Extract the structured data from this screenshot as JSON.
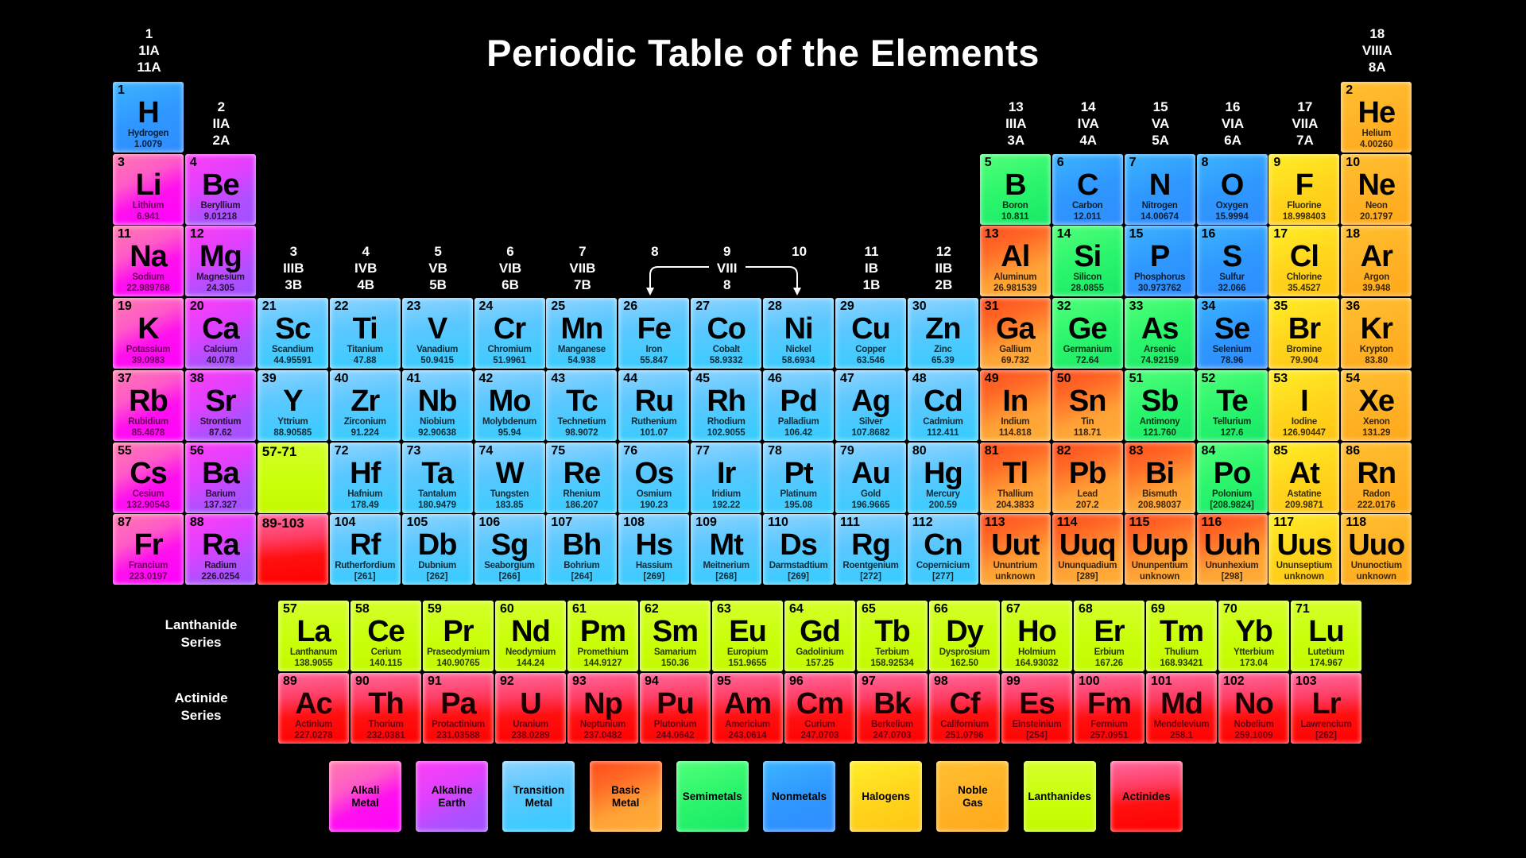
{
  "title": "Periodic Table of the Elements",
  "group_headers": [
    {
      "group": 1,
      "lines": [
        "1",
        "1IA",
        "11A"
      ]
    },
    {
      "group": 2,
      "lines": [
        "2",
        "IIA",
        "2A"
      ]
    },
    {
      "group": 3,
      "lines": [
        "3",
        "IIIB",
        "3B"
      ]
    },
    {
      "group": 4,
      "lines": [
        "4",
        "IVB",
        "4B"
      ]
    },
    {
      "group": 5,
      "lines": [
        "5",
        "VB",
        "5B"
      ]
    },
    {
      "group": 6,
      "lines": [
        "6",
        "VIB",
        "6B"
      ]
    },
    {
      "group": 7,
      "lines": [
        "7",
        "VIIB",
        "7B"
      ]
    },
    {
      "group": 8,
      "lines": [
        "8"
      ]
    },
    {
      "group": 9,
      "lines": [
        "9",
        "VIII",
        "8"
      ]
    },
    {
      "group": 10,
      "lines": [
        "10"
      ]
    },
    {
      "group": 11,
      "lines": [
        "11",
        "IB",
        "1B"
      ]
    },
    {
      "group": 12,
      "lines": [
        "12",
        "IIB",
        "2B"
      ]
    },
    {
      "group": 13,
      "lines": [
        "13",
        "IIIA",
        "3A"
      ]
    },
    {
      "group": 14,
      "lines": [
        "14",
        "IVA",
        "4A"
      ]
    },
    {
      "group": 15,
      "lines": [
        "15",
        "VA",
        "5A"
      ]
    },
    {
      "group": 16,
      "lines": [
        "16",
        "VIA",
        "6A"
      ]
    },
    {
      "group": 17,
      "lines": [
        "17",
        "VIIA",
        "7A"
      ]
    },
    {
      "group": 18,
      "lines": [
        "18",
        "VIIIA",
        "8A"
      ]
    }
  ],
  "category_colors": {
    "alkali": "#ff00ff",
    "alkaline": "#a050ff",
    "transition": "#33ccff",
    "basic": "#ff8c2a",
    "semimetal": "#20f06a",
    "nonmetal": "#2f98ff",
    "halogen": "#ffd61c",
    "noble": "#ffb024",
    "lanthanide": "#c8ff08",
    "actinide": "#ff0000"
  },
  "placeholders": [
    {
      "label": "57-71",
      "category": "lanthanide",
      "period": 6
    },
    {
      "label": "89-103",
      "category": "actinide",
      "period": 7
    }
  ],
  "series_labels": {
    "lanthanide": [
      "Lanthanide",
      "Series"
    ],
    "actinide": [
      "Actinide",
      "Series"
    ]
  },
  "elements": [
    {
      "z": "1",
      "sym": "H",
      "name": "Hydrogen",
      "mass": "1.0079",
      "cat": "nonmetal"
    },
    {
      "z": "2",
      "sym": "He",
      "name": "Helium",
      "mass": "4.00260",
      "cat": "noble"
    },
    {
      "z": "3",
      "sym": "Li",
      "name": "Lithium",
      "mass": "6.941",
      "cat": "alkali"
    },
    {
      "z": "4",
      "sym": "Be",
      "name": "Beryllium",
      "mass": "9.01218",
      "cat": "alkaline"
    },
    {
      "z": "5",
      "sym": "B",
      "name": "Boron",
      "mass": "10.811",
      "cat": "semimetal"
    },
    {
      "z": "6",
      "sym": "C",
      "name": "Carbon",
      "mass": "12.011",
      "cat": "nonmetal"
    },
    {
      "z": "7",
      "sym": "N",
      "name": "Nitrogen",
      "mass": "14.00674",
      "cat": "nonmetal"
    },
    {
      "z": "8",
      "sym": "O",
      "name": "Oxygen",
      "mass": "15.9994",
      "cat": "nonmetal"
    },
    {
      "z": "9",
      "sym": "F",
      "name": "Fluorine",
      "mass": "18.998403",
      "cat": "halogen"
    },
    {
      "z": "10",
      "sym": "Ne",
      "name": "Neon",
      "mass": "20.1797",
      "cat": "noble"
    },
    {
      "z": "11",
      "sym": "Na",
      "name": "Sodium",
      "mass": "22.989768",
      "cat": "alkali"
    },
    {
      "z": "12",
      "sym": "Mg",
      "name": "Magnesium",
      "mass": "24.305",
      "cat": "alkaline"
    },
    {
      "z": "13",
      "sym": "Al",
      "name": "Aluminum",
      "mass": "26.981539",
      "cat": "basic"
    },
    {
      "z": "14",
      "sym": "Si",
      "name": "Silicon",
      "mass": "28.0855",
      "cat": "semimetal"
    },
    {
      "z": "15",
      "sym": "P",
      "name": "Phosphorus",
      "mass": "30.973762",
      "cat": "nonmetal"
    },
    {
      "z": "16",
      "sym": "S",
      "name": "Sulfur",
      "mass": "32.066",
      "cat": "nonmetal"
    },
    {
      "z": "17",
      "sym": "Cl",
      "name": "Chlorine",
      "mass": "35.4527",
      "cat": "halogen"
    },
    {
      "z": "18",
      "sym": "Ar",
      "name": "Argon",
      "mass": "39.948",
      "cat": "noble"
    },
    {
      "z": "19",
      "sym": "K",
      "name": "Potassium",
      "mass": "39.0983",
      "cat": "alkali"
    },
    {
      "z": "20",
      "sym": "Ca",
      "name": "Calcium",
      "mass": "40.078",
      "cat": "alkaline"
    },
    {
      "z": "21",
      "sym": "Sc",
      "name": "Scandium",
      "mass": "44.95591",
      "cat": "transition"
    },
    {
      "z": "22",
      "sym": "Ti",
      "name": "Titanium",
      "mass": "47.88",
      "cat": "transition"
    },
    {
      "z": "23",
      "sym": "V",
      "name": "Vanadium",
      "mass": "50.9415",
      "cat": "transition"
    },
    {
      "z": "24",
      "sym": "Cr",
      "name": "Chromium",
      "mass": "51.9961",
      "cat": "transition"
    },
    {
      "z": "25",
      "sym": "Mn",
      "name": "Manganese",
      "mass": "54.938",
      "cat": "transition"
    },
    {
      "z": "26",
      "sym": "Fe",
      "name": "Iron",
      "mass": "55.847",
      "cat": "transition"
    },
    {
      "z": "27",
      "sym": "Co",
      "name": "Cobalt",
      "mass": "58.9332",
      "cat": "transition"
    },
    {
      "z": "28",
      "sym": "Ni",
      "name": "Nickel",
      "mass": "58.6934",
      "cat": "transition"
    },
    {
      "z": "29",
      "sym": "Cu",
      "name": "Copper",
      "mass": "63.546",
      "cat": "transition"
    },
    {
      "z": "30",
      "sym": "Zn",
      "name": "Zinc",
      "mass": "65.39",
      "cat": "transition"
    },
    {
      "z": "31",
      "sym": "Ga",
      "name": "Gallium",
      "mass": "69.732",
      "cat": "basic"
    },
    {
      "z": "32",
      "sym": "Ge",
      "name": "Germanium",
      "mass": "72.64",
      "cat": "semimetal"
    },
    {
      "z": "33",
      "sym": "As",
      "name": "Arsenic",
      "mass": "74.92159",
      "cat": "semimetal"
    },
    {
      "z": "34",
      "sym": "Se",
      "name": "Selenium",
      "mass": "78.96",
      "cat": "nonmetal"
    },
    {
      "z": "35",
      "sym": "Br",
      "name": "Bromine",
      "mass": "79.904",
      "cat": "halogen"
    },
    {
      "z": "36",
      "sym": "Kr",
      "name": "Krypton",
      "mass": "83.80",
      "cat": "noble"
    },
    {
      "z": "37",
      "sym": "Rb",
      "name": "Rubidium",
      "mass": "85.4678",
      "cat": "alkali"
    },
    {
      "z": "38",
      "sym": "Sr",
      "name": "Strontium",
      "mass": "87.62",
      "cat": "alkaline"
    },
    {
      "z": "39",
      "sym": "Y",
      "name": "Yttrium",
      "mass": "88.90585",
      "cat": "transition"
    },
    {
      "z": "40",
      "sym": "Zr",
      "name": "Zirconium",
      "mass": "91.224",
      "cat": "transition"
    },
    {
      "z": "41",
      "sym": "Nb",
      "name": "Niobium",
      "mass": "92.90638",
      "cat": "transition"
    },
    {
      "z": "42",
      "sym": "Mo",
      "name": "Molybdenum",
      "mass": "95.94",
      "cat": "transition"
    },
    {
      "z": "43",
      "sym": "Tc",
      "name": "Technetium",
      "mass": "98.9072",
      "cat": "transition"
    },
    {
      "z": "44",
      "sym": "Ru",
      "name": "Ruthenium",
      "mass": "101.07",
      "cat": "transition"
    },
    {
      "z": "45",
      "sym": "Rh",
      "name": "Rhodium",
      "mass": "102.9055",
      "cat": "transition"
    },
    {
      "z": "46",
      "sym": "Pd",
      "name": "Palladium",
      "mass": "106.42",
      "cat": "transition"
    },
    {
      "z": "47",
      "sym": "Ag",
      "name": "Silver",
      "mass": "107.8682",
      "cat": "transition"
    },
    {
      "z": "48",
      "sym": "Cd",
      "name": "Cadmium",
      "mass": "112.411",
      "cat": "transition"
    },
    {
      "z": "49",
      "sym": "In",
      "name": "Indium",
      "mass": "114.818",
      "cat": "basic"
    },
    {
      "z": "50",
      "sym": "Sn",
      "name": "Tin",
      "mass": "118.71",
      "cat": "basic"
    },
    {
      "z": "51",
      "sym": "Sb",
      "name": "Antimony",
      "mass": "121.760",
      "cat": "semimetal"
    },
    {
      "z": "52",
      "sym": "Te",
      "name": "Tellurium",
      "mass": "127.6",
      "cat": "semimetal"
    },
    {
      "z": "53",
      "sym": "I",
      "name": "Iodine",
      "mass": "126.90447",
      "cat": "halogen"
    },
    {
      "z": "54",
      "sym": "Xe",
      "name": "Xenon",
      "mass": "131.29",
      "cat": "noble"
    },
    {
      "z": "55",
      "sym": "Cs",
      "name": "Cesium",
      "mass": "132.90543",
      "cat": "alkali"
    },
    {
      "z": "56",
      "sym": "Ba",
      "name": "Barium",
      "mass": "137.327",
      "cat": "alkaline"
    },
    {
      "z": "57",
      "sym": "La",
      "name": "Lanthanum",
      "mass": "138.9055",
      "cat": "lanthanide"
    },
    {
      "z": "58",
      "sym": "Ce",
      "name": "Cerium",
      "mass": "140.115",
      "cat": "lanthanide"
    },
    {
      "z": "59",
      "sym": "Pr",
      "name": "Praseodymium",
      "mass": "140.90765",
      "cat": "lanthanide"
    },
    {
      "z": "60",
      "sym": "Nd",
      "name": "Neodymium",
      "mass": "144.24",
      "cat": "lanthanide"
    },
    {
      "z": "61",
      "sym": "Pm",
      "name": "Promethium",
      "mass": "144.9127",
      "cat": "lanthanide"
    },
    {
      "z": "62",
      "sym": "Sm",
      "name": "Samarium",
      "mass": "150.36",
      "cat": "lanthanide"
    },
    {
      "z": "63",
      "sym": "Eu",
      "name": "Europium",
      "mass": "151.9655",
      "cat": "lanthanide"
    },
    {
      "z": "64",
      "sym": "Gd",
      "name": "Gadolinium",
      "mass": "157.25",
      "cat": "lanthanide"
    },
    {
      "z": "65",
      "sym": "Tb",
      "name": "Terbium",
      "mass": "158.92534",
      "cat": "lanthanide"
    },
    {
      "z": "66",
      "sym": "Dy",
      "name": "Dysprosium",
      "mass": "162.50",
      "cat": "lanthanide"
    },
    {
      "z": "67",
      "sym": "Ho",
      "name": "Holmium",
      "mass": "164.93032",
      "cat": "lanthanide"
    },
    {
      "z": "68",
      "sym": "Er",
      "name": "Erbium",
      "mass": "167.26",
      "cat": "lanthanide"
    },
    {
      "z": "69",
      "sym": "Tm",
      "name": "Thulium",
      "mass": "168.93421",
      "cat": "lanthanide"
    },
    {
      "z": "70",
      "sym": "Yb",
      "name": "Ytterbium",
      "mass": "173.04",
      "cat": "lanthanide"
    },
    {
      "z": "71",
      "sym": "Lu",
      "name": "Lutetium",
      "mass": "174.967",
      "cat": "lanthanide"
    },
    {
      "z": "72",
      "sym": "Hf",
      "name": "Hafnium",
      "mass": "178.49",
      "cat": "transition"
    },
    {
      "z": "73",
      "sym": "Ta",
      "name": "Tantalum",
      "mass": "180.9479",
      "cat": "transition"
    },
    {
      "z": "74",
      "sym": "W",
      "name": "Tungsten",
      "mass": "183.85",
      "cat": "transition"
    },
    {
      "z": "75",
      "sym": "Re",
      "name": "Rhenium",
      "mass": "186.207",
      "cat": "transition"
    },
    {
      "z": "76",
      "sym": "Os",
      "name": "Osmium",
      "mass": "190.23",
      "cat": "transition"
    },
    {
      "z": "77",
      "sym": "Ir",
      "name": "Iridium",
      "mass": "192.22",
      "cat": "transition"
    },
    {
      "z": "78",
      "sym": "Pt",
      "name": "Platinum",
      "mass": "195.08",
      "cat": "transition"
    },
    {
      "z": "79",
      "sym": "Au",
      "name": "Gold",
      "mass": "196.9665",
      "cat": "transition"
    },
    {
      "z": "80",
      "sym": "Hg",
      "name": "Mercury",
      "mass": "200.59",
      "cat": "transition"
    },
    {
      "z": "81",
      "sym": "Tl",
      "name": "Thallium",
      "mass": "204.3833",
      "cat": "basic"
    },
    {
      "z": "82",
      "sym": "Pb",
      "name": "Lead",
      "mass": "207.2",
      "cat": "basic"
    },
    {
      "z": "83",
      "sym": "Bi",
      "name": "Bismuth",
      "mass": "208.98037",
      "cat": "basic"
    },
    {
      "z": "84",
      "sym": "Po",
      "name": "Polonium",
      "mass": "[208.9824]",
      "cat": "semimetal"
    },
    {
      "z": "85",
      "sym": "At",
      "name": "Astatine",
      "mass": "209.9871",
      "cat": "halogen"
    },
    {
      "z": "86",
      "sym": "Rn",
      "name": "Radon",
      "mass": "222.0176",
      "cat": "noble"
    },
    {
      "z": "87",
      "sym": "Fr",
      "name": "Francium",
      "mass": "223.0197",
      "cat": "alkali"
    },
    {
      "z": "88",
      "sym": "Ra",
      "name": "Radium",
      "mass": "226.0254",
      "cat": "alkaline"
    },
    {
      "z": "89",
      "sym": "Ac",
      "name": "Actinium",
      "mass": "227.0278",
      "cat": "actinide"
    },
    {
      "z": "90",
      "sym": "Th",
      "name": "Thorium",
      "mass": "232.0381",
      "cat": "actinide"
    },
    {
      "z": "91",
      "sym": "Pa",
      "name": "Protactinium",
      "mass": "231.03588",
      "cat": "actinide"
    },
    {
      "z": "92",
      "sym": "U",
      "name": "Uranium",
      "mass": "238.0289",
      "cat": "actinide"
    },
    {
      "z": "93",
      "sym": "Np",
      "name": "Neptunium",
      "mass": "237.0482",
      "cat": "actinide"
    },
    {
      "z": "94",
      "sym": "Pu",
      "name": "Plutonium",
      "mass": "244.0642",
      "cat": "actinide"
    },
    {
      "z": "95",
      "sym": "Am",
      "name": "Americium",
      "mass": "243.0614",
      "cat": "actinide"
    },
    {
      "z": "96",
      "sym": "Cm",
      "name": "Curium",
      "mass": "247.0703",
      "cat": "actinide"
    },
    {
      "z": "97",
      "sym": "Bk",
      "name": "Berkelium",
      "mass": "247.0703",
      "cat": "actinide"
    },
    {
      "z": "98",
      "sym": "Cf",
      "name": "Californium",
      "mass": "251.0796",
      "cat": "actinide"
    },
    {
      "z": "99",
      "sym": "Es",
      "name": "Einsteinium",
      "mass": "[254]",
      "cat": "actinide"
    },
    {
      "z": "100",
      "sym": "Fm",
      "name": "Fermium",
      "mass": "257.0951",
      "cat": "actinide"
    },
    {
      "z": "101",
      "sym": "Md",
      "name": "Mendelevium",
      "mass": "258.1",
      "cat": "actinide"
    },
    {
      "z": "102",
      "sym": "No",
      "name": "Nobelium",
      "mass": "259.1009",
      "cat": "actinide"
    },
    {
      "z": "103",
      "sym": "Lr",
      "name": "Lawrencium",
      "mass": "[262]",
      "cat": "actinide"
    },
    {
      "z": "104",
      "sym": "Rf",
      "name": "Rutherfordium",
      "mass": "[261]",
      "cat": "transition"
    },
    {
      "z": "105",
      "sym": "Db",
      "name": "Dubnium",
      "mass": "[262]",
      "cat": "transition"
    },
    {
      "z": "106",
      "sym": "Sg",
      "name": "Seaborgium",
      "mass": "[266]",
      "cat": "transition"
    },
    {
      "z": "107",
      "sym": "Bh",
      "name": "Bohrium",
      "mass": "[264]",
      "cat": "transition"
    },
    {
      "z": "108",
      "sym": "Hs",
      "name": "Hassium",
      "mass": "[269]",
      "cat": "transition"
    },
    {
      "z": "109",
      "sym": "Mt",
      "name": "Meitnerium",
      "mass": "[268]",
      "cat": "transition"
    },
    {
      "z": "110",
      "sym": "Ds",
      "name": "Darmstadtium",
      "mass": "[269]",
      "cat": "transition"
    },
    {
      "z": "111",
      "sym": "Rg",
      "name": "Roentgenium",
      "mass": "[272]",
      "cat": "transition"
    },
    {
      "z": "112",
      "sym": "Cn",
      "name": "Copernicium",
      "mass": "[277]",
      "cat": "transition"
    },
    {
      "z": "113",
      "sym": "Uut",
      "name": "Ununtrium",
      "mass": "unknown",
      "cat": "basic"
    },
    {
      "z": "114",
      "sym": "Uuq",
      "name": "Ununquadium",
      "mass": "[289]",
      "cat": "basic"
    },
    {
      "z": "115",
      "sym": "Uup",
      "name": "Ununpentium",
      "mass": "unknown",
      "cat": "basic"
    },
    {
      "z": "116",
      "sym": "Uuh",
      "name": "Ununhexium",
      "mass": "[298]",
      "cat": "basic"
    },
    {
      "z": "117",
      "sym": "Uus",
      "name": "Ununseptium",
      "mass": "unknown",
      "cat": "halogen"
    },
    {
      "z": "118",
      "sym": "Uuo",
      "name": "Ununoctium",
      "mass": "unknown",
      "cat": "noble"
    }
  ],
  "legend": [
    {
      "cat": "alkali",
      "lines": [
        "Alkali",
        "Metal"
      ]
    },
    {
      "cat": "alkaline",
      "lines": [
        "Alkaline",
        "Earth"
      ]
    },
    {
      "cat": "transition",
      "lines": [
        "Transition",
        "Metal"
      ]
    },
    {
      "cat": "basic",
      "lines": [
        "Basic",
        "Metal"
      ]
    },
    {
      "cat": "semimetal",
      "lines": [
        "Semimetals"
      ]
    },
    {
      "cat": "nonmetal",
      "lines": [
        "Nonmetals"
      ]
    },
    {
      "cat": "halogen",
      "lines": [
        "Halogens"
      ]
    },
    {
      "cat": "noble",
      "lines": [
        "Noble",
        "Gas"
      ]
    },
    {
      "cat": "lanthanide",
      "lines": [
        "Lanthanides"
      ]
    },
    {
      "cat": "actinide",
      "lines": [
        "Actinides"
      ]
    }
  ]
}
